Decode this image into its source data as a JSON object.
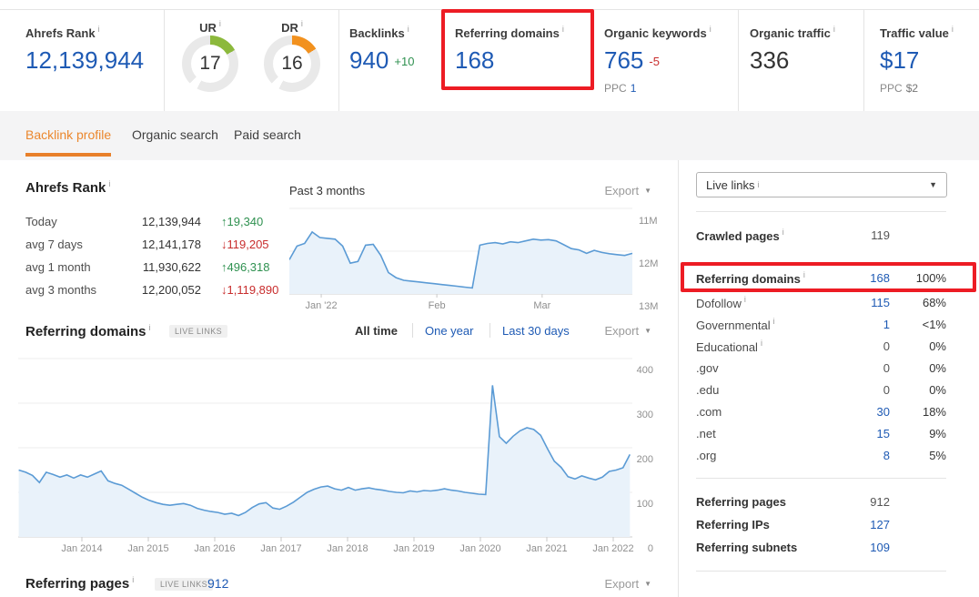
{
  "icons": {
    "info": "i",
    "caret_down": "▼",
    "up_arrow": "↑",
    "down_arrow": "↓"
  },
  "colors": {
    "accent_blue": "#1e5ab4",
    "delta_green": "#2f9150",
    "delta_red": "#c82d2d",
    "highlight_red": "#ed1c24",
    "tab_orange": "#eb872d",
    "gauge_green": "#8cb93c",
    "gauge_orange": "#f2911e",
    "chart_line": "#5b9bd5",
    "chart_fill": "#e9f2fa"
  },
  "topbar": {
    "metrics": [
      {
        "label": "Ahrefs Rank",
        "value": "12,139,944"
      },
      {
        "label": "UR",
        "value": "17",
        "percent": 17
      },
      {
        "label": "DR",
        "value": "16",
        "percent": 16
      },
      {
        "label": "Backlinks",
        "value": "940",
        "delta": "+10"
      },
      {
        "label": "Referring domains",
        "value": "168",
        "highlighted": true
      },
      {
        "label": "Organic keywords",
        "value": "765",
        "delta": "-5",
        "ppc_label": "PPC",
        "ppc_value": "1"
      },
      {
        "label": "Organic traffic",
        "value": "336"
      },
      {
        "label": "Traffic value",
        "value": "$17",
        "ppc_label": "PPC",
        "ppc_value": "$2"
      }
    ]
  },
  "tabs": [
    {
      "label": "Backlink profile",
      "active": true
    },
    {
      "label": "Organic search",
      "active": false
    },
    {
      "label": "Paid search",
      "active": false
    }
  ],
  "rank_section": {
    "title": "Ahrefs Rank",
    "rows": [
      {
        "label": "Today",
        "value": "12,139,944",
        "arrow": "↑",
        "delta": "19,340",
        "dir": "up"
      },
      {
        "label": "avg 7 days",
        "value": "12,141,178",
        "arrow": "↓",
        "delta": "119,205",
        "dir": "down"
      },
      {
        "label": "avg 1 month",
        "value": "11,930,622",
        "arrow": "↑",
        "delta": "496,318",
        "dir": "up"
      },
      {
        "label": "avg 3 months",
        "value": "12,200,052",
        "arrow": "↓",
        "delta": "1,119,890",
        "dir": "down"
      }
    ]
  },
  "rank_chart": {
    "title": "Past 3 months",
    "export": "Export"
  },
  "refdomains_section": {
    "title": "Referring domains",
    "badge": "LIVE LINKS",
    "filters": {
      "all": "All time",
      "year": "One year",
      "days": "Last 30 days"
    },
    "active_filter": "All time",
    "export": "Export"
  },
  "refpages_footer": {
    "title": "Referring pages",
    "badge": "LIVE LINKS",
    "value": "912",
    "export": "Export"
  },
  "sidebar": {
    "filter_select": {
      "value": "Live links"
    },
    "crawled_pages": {
      "label": "Crawled pages",
      "value": "119",
      "pct": ""
    },
    "referring_domains_row": {
      "label": "Referring domains",
      "value": "168",
      "pct": "100%",
      "highlighted": true
    },
    "rows": [
      {
        "label": "Dofollow",
        "value": "115",
        "pct": "68%",
        "blue": true
      },
      {
        "label": "Governmental",
        "value": "1",
        "pct": "<1%",
        "blue": true
      },
      {
        "label": "Educational",
        "value": "0",
        "pct": "0%",
        "blue": false
      },
      {
        "label": ".gov",
        "value": "0",
        "pct": "0%",
        "blue": false
      },
      {
        "label": ".edu",
        "value": "0",
        "pct": "0%",
        "blue": false
      },
      {
        "label": ".com",
        "value": "30",
        "pct": "18%",
        "blue": true
      },
      {
        "label": ".net",
        "value": "15",
        "pct": "9%",
        "blue": true
      },
      {
        "label": ".org",
        "value": "8",
        "pct": "5%",
        "blue": true
      }
    ],
    "totals": [
      {
        "label": "Referring pages",
        "value": "912",
        "pct": "",
        "blue": false
      },
      {
        "label": "Referring IPs",
        "value": "127",
        "pct": "",
        "blue": true
      },
      {
        "label": "Referring subnets",
        "value": "109",
        "pct": "",
        "blue": true
      }
    ]
  },
  "chart_data": [
    {
      "id": "ahrefs-rank-past-3-months",
      "type": "area",
      "title": "Past 3 months",
      "series_name": "Ahrefs Rank",
      "y_axis": {
        "ticks": [
          "11M",
          "12M",
          "13M"
        ],
        "inverted": true,
        "range_millions": [
          11,
          13
        ]
      },
      "x_ticks": [
        {
          "label": "Jan '22",
          "f": 0.093
        },
        {
          "label": "Feb",
          "f": 0.43
        },
        {
          "label": "Mar",
          "f": 0.737
        }
      ],
      "values_millions": [
        12.2,
        11.88,
        11.82,
        11.55,
        11.68,
        11.7,
        11.72,
        11.88,
        12.28,
        12.24,
        11.86,
        11.84,
        12.1,
        12.5,
        12.62,
        12.68,
        12.7,
        12.72,
        12.74,
        12.76,
        12.78,
        12.8,
        12.82,
        12.84,
        12.86,
        11.86,
        11.82,
        11.8,
        11.83,
        11.78,
        11.8,
        11.76,
        11.72,
        11.74,
        11.73,
        11.76,
        11.85,
        11.94,
        11.97,
        12.05,
        11.98,
        12.03,
        12.06,
        12.08,
        12.1,
        12.05
      ]
    },
    {
      "id": "referring-domains-all-time",
      "type": "area",
      "title": "Referring domains",
      "series_name": "Referring domains",
      "y_axis": {
        "ticks": [
          400,
          300,
          200,
          100,
          0
        ],
        "range": [
          0,
          400
        ]
      },
      "x_ticks": [
        {
          "label": "Jan 2014",
          "year": 2014
        },
        {
          "label": "Jan 2015",
          "year": 2015
        },
        {
          "label": "Jan 2016",
          "year": 2016
        },
        {
          "label": "Jan 2017",
          "year": 2017
        },
        {
          "label": "Jan 2018",
          "year": 2018
        },
        {
          "label": "Jan 2019",
          "year": 2019
        },
        {
          "label": "Jan 2020",
          "year": 2020
        },
        {
          "label": "Jan 2021",
          "year": 2021
        },
        {
          "label": "Jan 2022",
          "year": 2022
        }
      ],
      "x_range_years": [
        2013.05,
        2022.25
      ],
      "values": [
        150,
        145,
        138,
        122,
        145,
        140,
        134,
        139,
        132,
        139,
        134,
        141,
        148,
        126,
        120,
        116,
        107,
        98,
        89,
        82,
        77,
        73,
        71,
        73,
        75,
        71,
        64,
        60,
        57,
        55,
        51,
        53,
        48,
        55,
        66,
        74,
        77,
        65,
        62,
        69,
        78,
        89,
        100,
        107,
        112,
        114,
        108,
        105,
        111,
        105,
        108,
        110,
        107,
        105,
        102,
        100,
        99,
        103,
        101,
        104,
        103,
        105,
        108,
        105,
        103,
        100,
        98,
        96,
        95,
        340,
        225,
        210,
        226,
        238,
        245,
        241,
        228,
        198,
        170,
        156,
        135,
        130,
        137,
        132,
        128,
        134,
        147,
        150,
        155,
        185
      ]
    }
  ]
}
